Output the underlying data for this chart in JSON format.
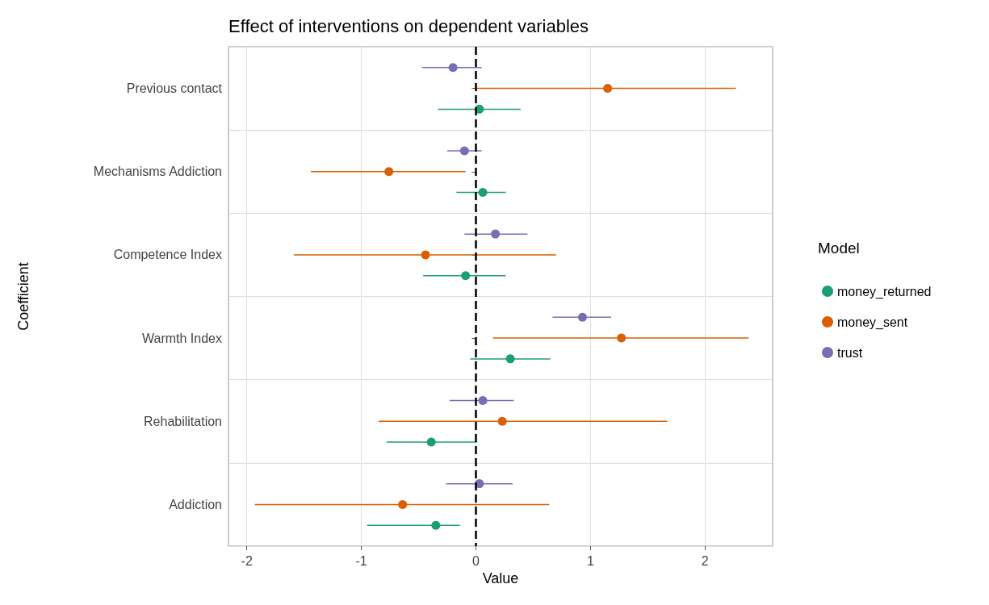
{
  "chart_data": {
    "type": "scatter",
    "orientation": "horizontal",
    "title": "Effect of interventions on dependent variables",
    "xlabel": "Value",
    "ylabel": "Coefficient",
    "legend_title": "Model",
    "categories": [
      "Previous contact",
      "Mechanisms Addiction",
      "Competence Index",
      "Warmth Index",
      "Rehabilitation",
      "Addiction"
    ],
    "series": [
      {
        "name": "money_returned",
        "color": "#1b9e77",
        "values": [
          0.03,
          0.06,
          -0.09,
          0.3,
          -0.39,
          -0.35
        ],
        "errors": [
          [
            -0.33,
            0.39
          ],
          [
            -0.17,
            0.26
          ],
          [
            -0.46,
            0.26
          ],
          [
            -0.05,
            0.65
          ],
          [
            -0.78,
            0.01
          ],
          [
            -0.95,
            -0.14
          ]
        ]
      },
      {
        "name": "money_sent",
        "color": "#d95f02",
        "values": [
          1.15,
          -0.76,
          -0.44,
          1.27,
          0.23,
          -0.64
        ],
        "errors": [
          [
            0.0,
            2.27
          ],
          [
            -1.44,
            -0.09
          ],
          [
            -1.59,
            0.7
          ],
          [
            0.15,
            2.38
          ],
          [
            -0.85,
            1.67
          ],
          [
            -1.93,
            0.64
          ]
        ]
      },
      {
        "name": "trust",
        "color": "#7570b3",
        "values": [
          -0.2,
          -0.1,
          0.17,
          0.93,
          0.06,
          0.03
        ],
        "errors": [
          [
            -0.47,
            0.05
          ],
          [
            -0.25,
            0.05
          ],
          [
            -0.1,
            0.45
          ],
          [
            0.67,
            1.18
          ],
          [
            -0.23,
            0.33
          ],
          [
            -0.26,
            0.32
          ]
        ]
      }
    ],
    "xlim": [
      -2.16,
      2.59
    ],
    "xticks": [
      -2,
      -1,
      0,
      1,
      2
    ],
    "ref_lines": [
      {
        "axis": "x",
        "value": 0,
        "color": "#000000",
        "line_style": "dashed"
      }
    ],
    "grid": true,
    "legend": "right",
    "marker": "circle"
  }
}
